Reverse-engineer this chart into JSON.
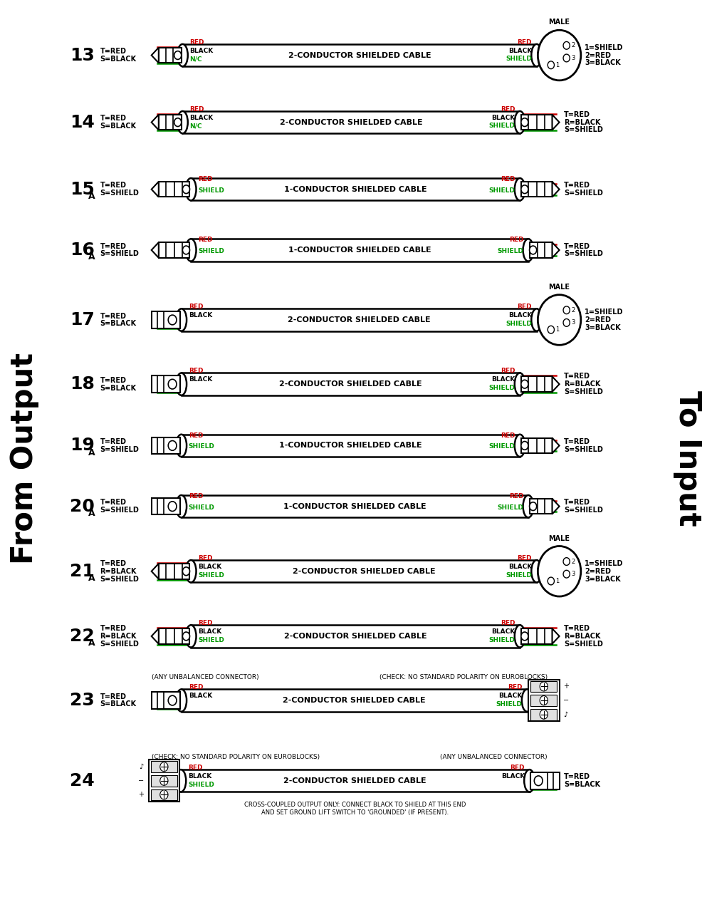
{
  "background_color": "#ffffff",
  "red_color": "#cc0000",
  "green_color": "#009900",
  "black_color": "#000000",
  "rows": [
    {
      "num": "13",
      "sub": "",
      "left_labels": [
        "T=RED",
        "S=BLACK"
      ],
      "right_labels": [
        "1=SHIELD",
        "2=RED",
        "3=BLACK"
      ],
      "cable_label": "2-CONDUCTOR SHIELDED CABLE",
      "left_conn": "ts_left",
      "right_conn": "xlr_male",
      "wires": [
        "red",
        "black",
        "shield"
      ],
      "lw_labels": [
        "RED",
        "BLACK",
        "N/C"
      ],
      "rw_labels": [
        "RED",
        "BLACK",
        "SHIELD"
      ],
      "male": true,
      "top_note_l": "",
      "top_note_r": "",
      "bot_note": ""
    },
    {
      "num": "14",
      "sub": "",
      "left_labels": [
        "T=RED",
        "S=BLACK"
      ],
      "right_labels": [
        "T=RED",
        "R=BLACK",
        "S=SHIELD"
      ],
      "cable_label": "2-CONDUCTOR SHIELDED CABLE",
      "left_conn": "ts_left",
      "right_conn": "trs_right",
      "wires": [
        "red",
        "black",
        "shield"
      ],
      "lw_labels": [
        "RED",
        "BLACK",
        "N/C"
      ],
      "rw_labels": [
        "RED",
        "BLACK",
        "SHIELD"
      ],
      "male": false,
      "top_note_l": "",
      "top_note_r": "",
      "bot_note": ""
    },
    {
      "num": "15",
      "sub": "A",
      "left_labels": [
        "T=RED",
        "S=SHIELD"
      ],
      "right_labels": [
        "T=RED",
        "S=SHIELD"
      ],
      "cable_label": "1-CONDUCTOR SHIELDED CABLE",
      "left_conn": "trs_left",
      "right_conn": "trs_right",
      "wires": [
        "red",
        "shield"
      ],
      "lw_labels": [
        "RED",
        "SHIELD"
      ],
      "rw_labels": [
        "RED",
        "SHIELD"
      ],
      "male": false,
      "top_note_l": "",
      "top_note_r": "",
      "bot_note": ""
    },
    {
      "num": "16",
      "sub": "A",
      "left_labels": [
        "T=RED",
        "S=SHIELD"
      ],
      "right_labels": [
        "T=RED",
        "S=SHIELD"
      ],
      "cable_label": "1-CONDUCTOR SHIELDED CABLE",
      "left_conn": "trs_left",
      "right_conn": "rca_right",
      "wires": [
        "red",
        "shield"
      ],
      "lw_labels": [
        "RED",
        "SHIELD"
      ],
      "rw_labels": [
        "RED",
        "SHIELD"
      ],
      "male": false,
      "top_note_l": "",
      "top_note_r": "",
      "bot_note": ""
    },
    {
      "num": "17",
      "sub": "",
      "left_labels": [
        "T=RED",
        "S=BLACK"
      ],
      "right_labels": [
        "1=SHIELD",
        "2=RED",
        "3=BLACK"
      ],
      "cable_label": "2-CONDUCTOR SHIELDED CABLE",
      "left_conn": "plug_left",
      "right_conn": "xlr_male",
      "wires": [
        "red",
        "black",
        "shield"
      ],
      "lw_labels": [
        "RED",
        "BLACK"
      ],
      "rw_labels": [
        "RED",
        "BLACK",
        "SHIELD"
      ],
      "male": true,
      "top_note_l": "",
      "top_note_r": "",
      "bot_note": ""
    },
    {
      "num": "18",
      "sub": "",
      "left_labels": [
        "T=RED",
        "S=BLACK"
      ],
      "right_labels": [
        "T=RED",
        "R=BLACK",
        "S=SHIELD"
      ],
      "cable_label": "2-CONDUCTOR SHIELDED CABLE",
      "left_conn": "plug_left",
      "right_conn": "trs_right",
      "wires": [
        "red",
        "black",
        "shield"
      ],
      "lw_labels": [
        "RED",
        "BLACK"
      ],
      "rw_labels": [
        "RED",
        "BLACK",
        "SHIELD"
      ],
      "male": false,
      "top_note_l": "",
      "top_note_r": "",
      "bot_note": ""
    },
    {
      "num": "19",
      "sub": "A",
      "left_labels": [
        "T=RED",
        "S=SHIELD"
      ],
      "right_labels": [
        "T=RED",
        "S=SHIELD"
      ],
      "cable_label": "1-CONDUCTOR SHIELDED CABLE",
      "left_conn": "plug_left",
      "right_conn": "trs_right",
      "wires": [
        "red",
        "shield"
      ],
      "lw_labels": [
        "RED",
        "SHIELD"
      ],
      "rw_labels": [
        "RED",
        "SHIELD"
      ],
      "male": false,
      "top_note_l": "",
      "top_note_r": "",
      "bot_note": ""
    },
    {
      "num": "20",
      "sub": "A",
      "left_labels": [
        "T=RED",
        "S=SHIELD"
      ],
      "right_labels": [
        "T=RED",
        "S=SHIELD"
      ],
      "cable_label": "1-CONDUCTOR SHIELDED CABLE",
      "left_conn": "plug_left",
      "right_conn": "rca_right",
      "wires": [
        "red",
        "shield"
      ],
      "lw_labels": [
        "RED",
        "SHIELD"
      ],
      "rw_labels": [
        "RED",
        "SHIELD"
      ],
      "male": false,
      "top_note_l": "",
      "top_note_r": "",
      "bot_note": ""
    },
    {
      "num": "21",
      "sub": "A",
      "left_labels": [
        "T=RED",
        "R=BLACK",
        "S=SHIELD"
      ],
      "right_labels": [
        "1=SHIELD",
        "2=RED",
        "3=BLACK"
      ],
      "cable_label": "2-CONDUCTOR SHIELDED CABLE",
      "left_conn": "trs_left",
      "right_conn": "xlr_male",
      "wires": [
        "red",
        "black",
        "shield"
      ],
      "lw_labels": [
        "RED",
        "BLACK",
        "SHIELD"
      ],
      "rw_labels": [
        "RED",
        "BLACK",
        "SHIELD"
      ],
      "male": true,
      "top_note_l": "",
      "top_note_r": "",
      "bot_note": ""
    },
    {
      "num": "22",
      "sub": "A",
      "left_labels": [
        "T=RED",
        "R=BLACK",
        "S=SHIELD"
      ],
      "right_labels": [
        "T=RED",
        "R=BLACK",
        "S=SHIELD"
      ],
      "cable_label": "2-CONDUCTOR SHIELDED CABLE",
      "left_conn": "trs_left",
      "right_conn": "trs_right",
      "wires": [
        "red",
        "black",
        "shield"
      ],
      "lw_labels": [
        "RED",
        "BLACK",
        "SHIELD"
      ],
      "rw_labels": [
        "RED",
        "BLACK",
        "SHIELD"
      ],
      "male": false,
      "top_note_l": "",
      "top_note_r": "",
      "bot_note": ""
    },
    {
      "num": "23",
      "sub": "",
      "left_labels": [
        "T=RED",
        "S=BLACK"
      ],
      "right_labels": [],
      "cable_label": "2-CONDUCTOR SHIELDED CABLE",
      "left_conn": "plug_left",
      "right_conn": "euroblock_right",
      "wires": [
        "red",
        "black",
        "shield"
      ],
      "lw_labels": [
        "RED",
        "BLACK"
      ],
      "rw_labels": [
        "RED",
        "BLACK",
        "SHIELD"
      ],
      "male": false,
      "top_note_l": "(ANY UNBALANCED CONNECTOR)",
      "top_note_r": "(CHECK: NO STANDARD POLARITY ON EUROBLOCKS)",
      "bot_note": ""
    },
    {
      "num": "24",
      "sub": "",
      "left_labels": [],
      "right_labels": [
        "T=RED",
        "S=BLACK"
      ],
      "cable_label": "2-CONDUCTOR SHIELDED CABLE",
      "left_conn": "euroblock_left",
      "right_conn": "plug_right",
      "wires": [
        "red",
        "black",
        "shield"
      ],
      "lw_labels": [
        "RED",
        "BLACK",
        "SHIELD"
      ],
      "rw_labels": [
        "RED",
        "BLACK"
      ],
      "male": false,
      "top_note_l": "(CHECK: NO STANDARD POLARITY ON EUROBLOCKS)",
      "top_note_r": "(ANY UNBALANCED CONNECTOR)",
      "bot_note": "CROSS-COUPLED OUTPUT ONLY: CONNECT BLACK TO SHIELD AT THIS END\nAND SET GROUND LIFT SWITCH TO 'GROUNDED' (IF PRESENT)."
    }
  ]
}
